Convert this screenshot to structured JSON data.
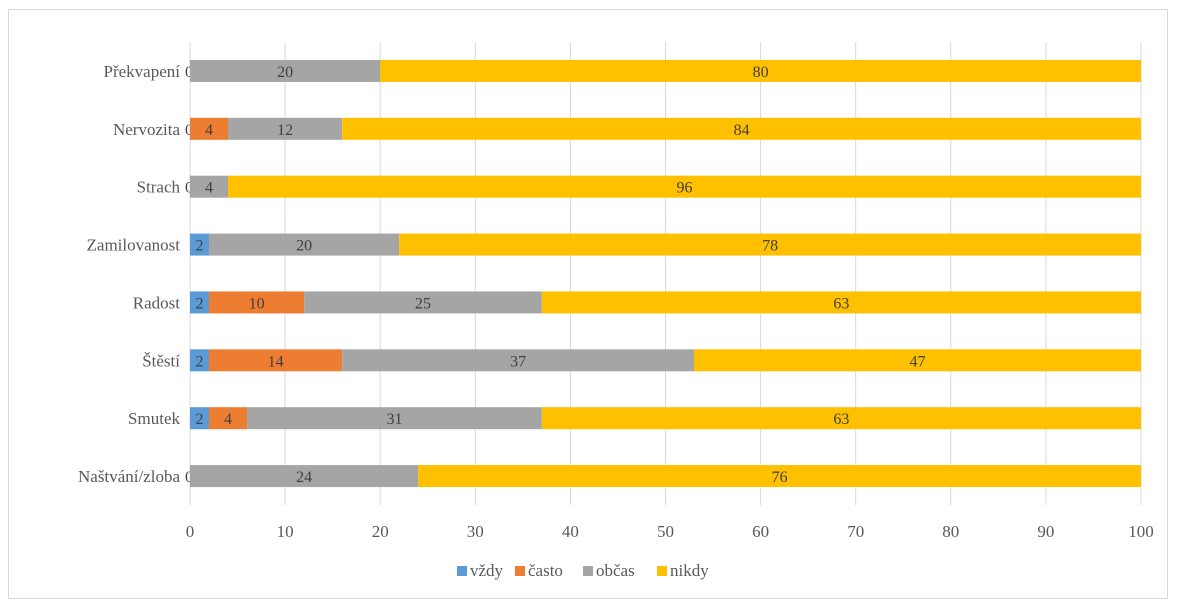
{
  "chart_data": {
    "type": "bar",
    "orientation": "horizontal",
    "stacked": true,
    "categories": [
      "Překvapení",
      "Nervozita",
      "Strach",
      "Zamilovanost",
      "Radost",
      "Štěstí",
      "Smutek",
      "Naštvání/zloba"
    ],
    "series": [
      {
        "name": "vždy",
        "color": "#5b9bd5",
        "values": [
          0,
          0,
          0,
          2,
          2,
          2,
          2,
          0
        ]
      },
      {
        "name": "často",
        "color": "#ed7d31",
        "values": [
          0,
          4,
          0,
          0,
          10,
          14,
          4,
          0
        ]
      },
      {
        "name": "občas",
        "color": "#a5a5a5",
        "values": [
          20,
          12,
          4,
          20,
          25,
          37,
          31,
          24
        ]
      },
      {
        "name": "nikdy",
        "color": "#ffc000",
        "values": [
          80,
          84,
          96,
          78,
          63,
          47,
          63,
          76
        ]
      }
    ],
    "xlim": [
      0,
      100
    ],
    "xticks": [
      0,
      10,
      20,
      30,
      40,
      50,
      60,
      70,
      80,
      90,
      100
    ],
    "grid": true,
    "legend": "bottom-center",
    "data_labels": true
  }
}
